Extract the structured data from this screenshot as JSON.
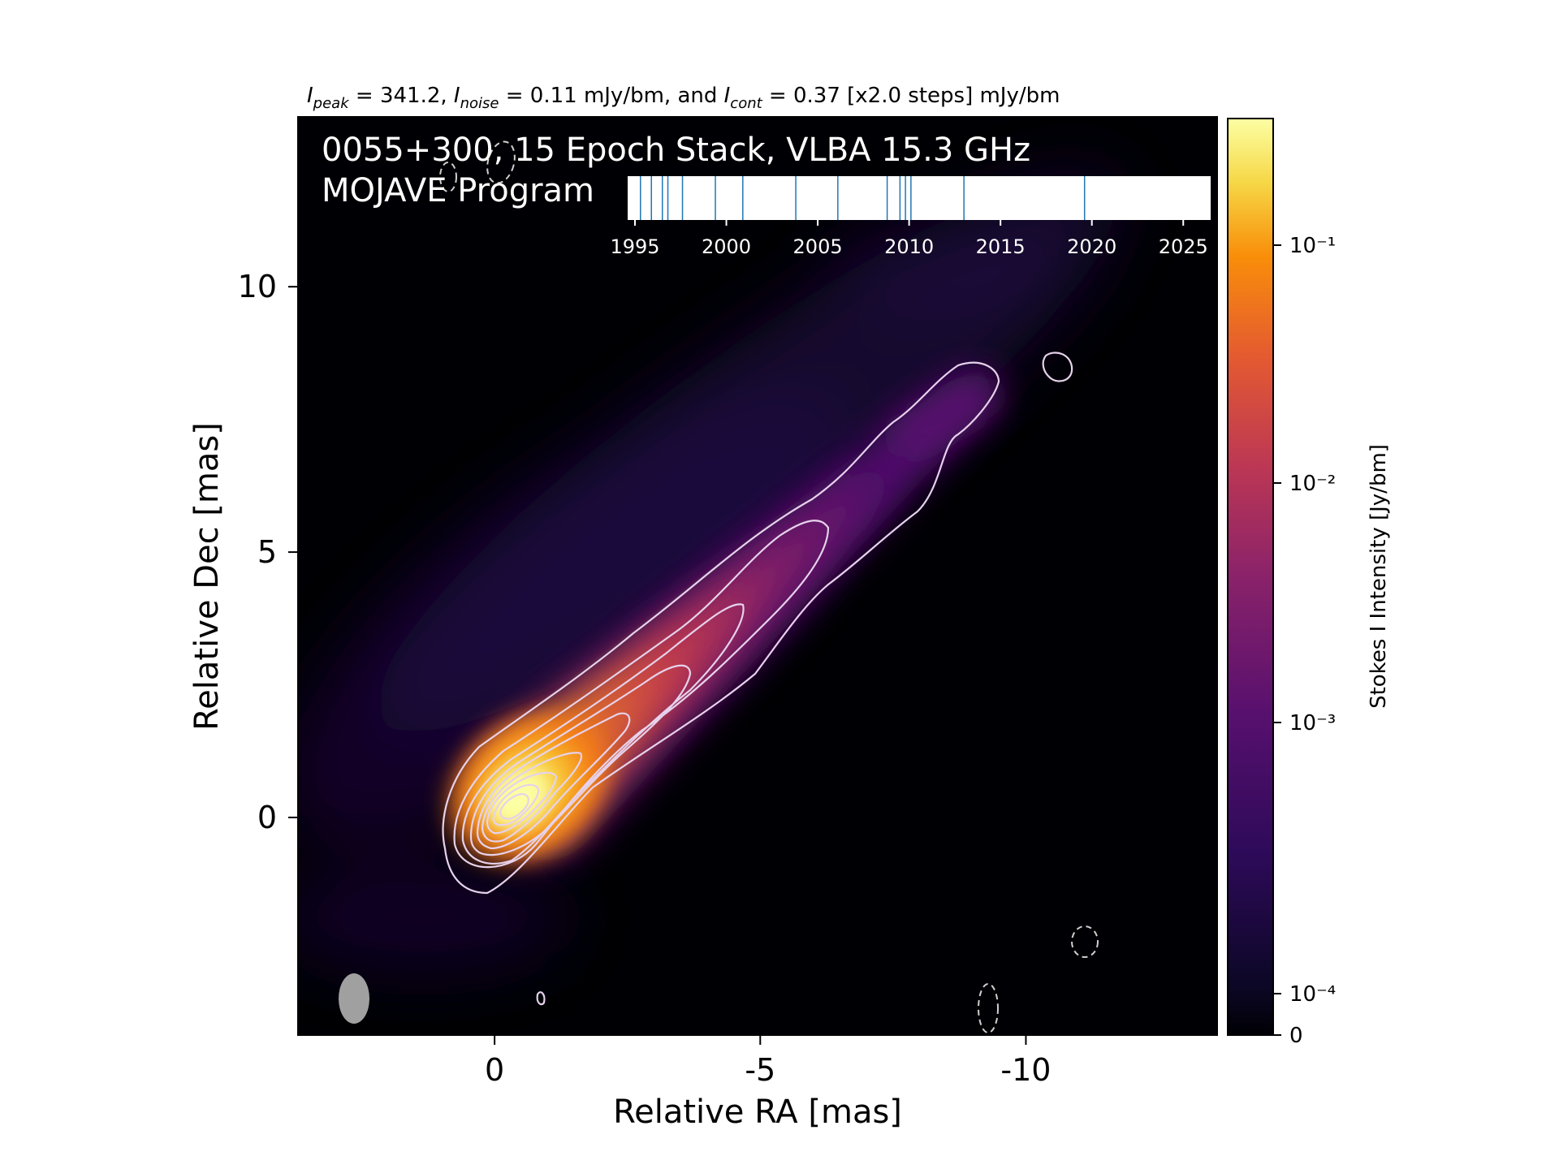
{
  "header": {
    "peak_label": "I",
    "peak_sub": "peak",
    "peak_value": " = 341.2, ",
    "noise_label": "I",
    "noise_sub": "noise",
    "noise_value": " = 0.11 mJy/bm, and ",
    "cont_label": "I",
    "cont_sub": "cont",
    "cont_value": " = 0.37 [x2.0 steps] mJy/bm"
  },
  "overlay": {
    "title_line1": "0055+300, 15 Epoch Stack, VLBA 15.3 GHz",
    "title_line2": "MOJAVE Program"
  },
  "chart_data": {
    "type": "heatmap",
    "source": "0055+300",
    "title": "0055+300, 15 Epoch Stack, VLBA 15.3 GHz",
    "subtitle": "MOJAVE Program",
    "xlabel": "Relative RA [mas]",
    "ylabel": "Relative Dec [mas]",
    "xlim": [
      3.7,
      -13.6
    ],
    "ylim": [
      -4.1,
      13.2
    ],
    "xticks": [
      0,
      -5,
      -10
    ],
    "xtick_labels": [
      "0",
      "-5",
      "-10"
    ],
    "yticks": [
      0,
      5,
      10
    ],
    "ytick_labels": [
      "0",
      "5",
      "10"
    ],
    "colorbar": {
      "label": "Stokes I Intensity [Jy/bm]",
      "scale": "log",
      "colormap": "inferno",
      "ticks": [
        0,
        0.0001,
        0.001,
        0.01,
        0.1
      ],
      "tick_labels": [
        "0",
        "10⁻⁴",
        "10⁻³",
        "10⁻²",
        "10⁻¹"
      ]
    },
    "peak_intensity": 341.2,
    "noise": 0.11,
    "lowest_contour": 0.37,
    "contour_step_factor": 2.0,
    "intensity_units": "mJy/bm",
    "contour_color": "#e6d2ec",
    "epochs": {
      "count": 15,
      "years": [
        1995.3,
        1995.9,
        1996.5,
        1996.8,
        1997.6,
        1999.4,
        2000.9,
        2003.8,
        2006.1,
        2008.8,
        2009.5,
        2009.8,
        2010.1,
        2013.0,
        2019.6
      ],
      "axis_ticks": [
        1995,
        2000,
        2005,
        2010,
        2015,
        2020,
        2025
      ],
      "axis_tick_labels": [
        "1995",
        "2000",
        "2005",
        "2010",
        "2015",
        "2020",
        "2025"
      ],
      "xlim": [
        1994.6,
        2026.5
      ]
    },
    "beam": {
      "ra": 2.7,
      "dec": -3.1,
      "major_mas": 1.1,
      "minor_mas": 0.55,
      "pa_deg": -5
    },
    "jet_axis_points": [
      {
        "ra": -0.3,
        "dec": 0.2
      },
      {
        "ra": -1.8,
        "dec": 1.4
      },
      {
        "ra": -3.4,
        "dec": 2.9
      },
      {
        "ra": -5.0,
        "dec": 4.3
      },
      {
        "ra": -6.8,
        "dec": 5.8
      },
      {
        "ra": -8.0,
        "dec": 7.2
      },
      {
        "ra": -9.0,
        "dec": 8.1
      }
    ]
  }
}
